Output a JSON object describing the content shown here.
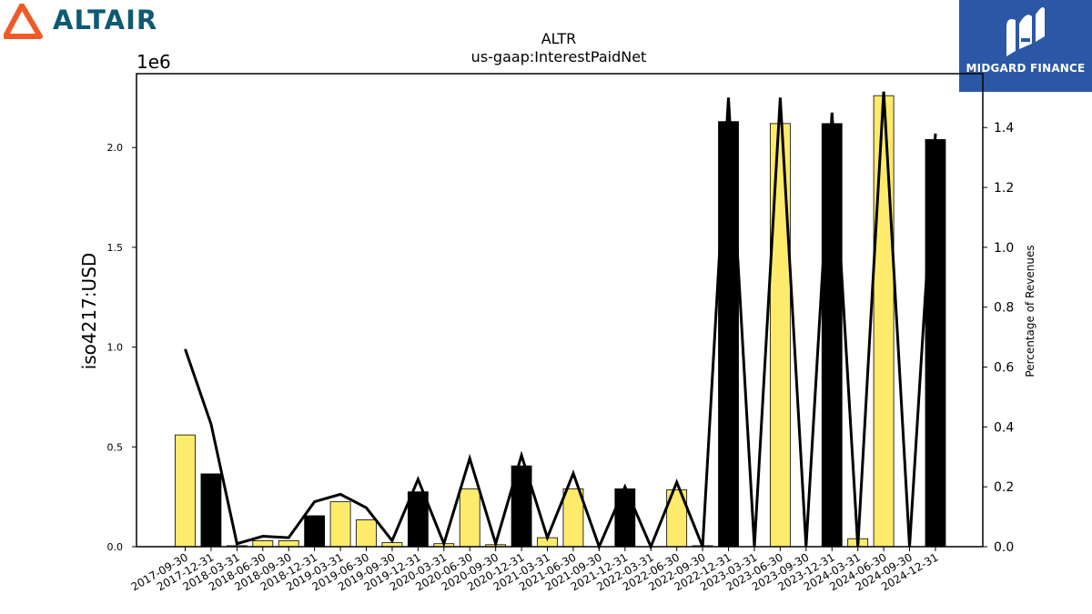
{
  "logos": {
    "left_text": "ALTAIR",
    "right_text": "MIDGARD FINANCE"
  },
  "colors": {
    "bar_yellow": "#ffeb6b",
    "bar_black": "#000000",
    "line": "#000000",
    "altair_orange": "#f05a28",
    "altair_text": "#0e5a72",
    "midgard_blue": "#2c57a6"
  },
  "chart_data": {
    "type": "bar",
    "title": "ALTR",
    "subtitle": "us-gaap:InterestPaidNet",
    "ylabel": "iso4217:USD",
    "y_offset_label": "1e6",
    "y2label": "Percentage of Revenues",
    "ylim": [
      0,
      2.37
    ],
    "y2lim": [
      0,
      1.58
    ],
    "yticks": [
      "0.0",
      "0.5",
      "1.0",
      "1.5",
      "2.0"
    ],
    "y2ticks": [
      "0.0",
      "0.2",
      "0.4",
      "0.6",
      "0.8",
      "1.0",
      "1.2",
      "1.4"
    ],
    "grid": false,
    "categories": [
      "2017-09-30",
      "2017-12-31",
      "2018-03-31",
      "2018-06-30",
      "2018-09-30",
      "2018-12-31",
      "2019-03-31",
      "2019-06-30",
      "2019-09-30",
      "2019-12-31",
      "2020-03-31",
      "2020-06-30",
      "2020-09-30",
      "2020-12-31",
      "2021-03-31",
      "2021-06-30",
      "2021-09-30",
      "2021-12-31",
      "2022-03-31",
      "2022-06-30",
      "2022-09-30",
      "2022-12-31",
      "2023-03-31",
      "2023-06-30",
      "2023-09-30",
      "2023-12-31",
      "2024-03-31",
      "2024-06-30",
      "2024-09-30",
      "2024-12-31"
    ],
    "series": [
      {
        "axis": "left",
        "values": [
          0.56,
          0.365,
          0.005,
          0.03,
          0.03,
          0.155,
          0.225,
          0.135,
          0.02,
          0.275,
          0.015,
          0.29,
          0.01,
          0.405,
          0.045,
          0.29,
          0.0,
          0.29,
          0.0,
          0.285,
          0.005,
          2.13,
          0.0,
          2.12,
          0.0,
          2.12,
          0.04,
          2.26,
          0.0,
          2.04
        ],
        "bar_colors": [
          "#ffeb6b",
          "#000000",
          "#ffeb6b",
          "#ffeb6b",
          "#ffeb6b",
          "#000000",
          "#ffeb6b",
          "#ffeb6b",
          "#ffeb6b",
          "#000000",
          "#ffeb6b",
          "#ffeb6b",
          "#ffeb6b",
          "#000000",
          "#ffeb6b",
          "#ffeb6b",
          "#ffeb6b",
          "#000000",
          "#ffeb6b",
          "#ffeb6b",
          "#ffeb6b",
          "#000000",
          "#ffeb6b",
          "#ffeb6b",
          "#ffeb6b",
          "#000000",
          "#ffeb6b",
          "#ffeb6b",
          "#ffeb6b",
          "#000000"
        ]
      },
      {
        "axis": "right",
        "type": "line",
        "values": [
          0.66,
          0.41,
          0.01,
          0.035,
          0.03,
          0.15,
          0.175,
          0.13,
          0.02,
          0.225,
          0.01,
          0.295,
          0.01,
          0.305,
          0.03,
          0.245,
          0.0,
          0.2,
          0.0,
          0.215,
          0.0,
          1.5,
          0.0,
          1.5,
          0.0,
          1.45,
          0.0,
          1.52,
          0.0,
          1.38
        ]
      }
    ]
  }
}
